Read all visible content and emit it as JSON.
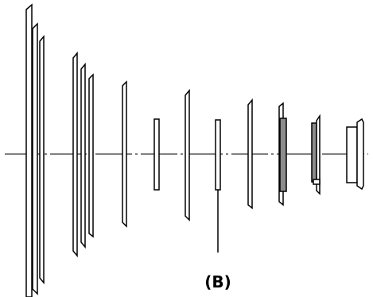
{
  "diagram": {
    "label": "(B)",
    "colors": {
      "stroke": "#000000",
      "filled_element": "#8c8c8c",
      "background": "#ffffff"
    }
  }
}
